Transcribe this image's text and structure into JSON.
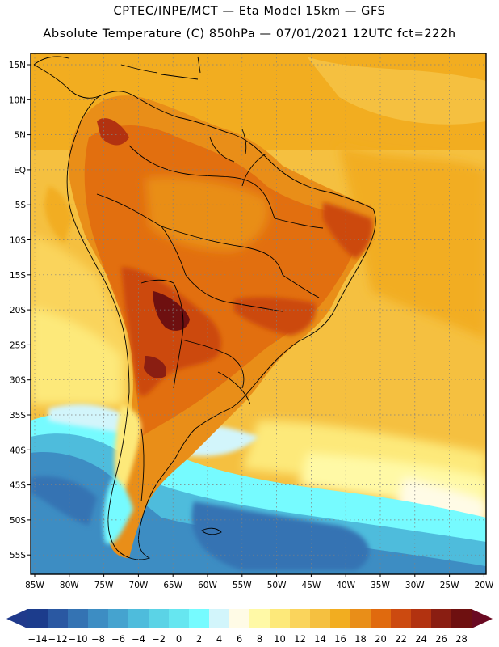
{
  "header": {
    "line1": "CPTEC/INPE/MCT —  Eta Model 15km — GFS",
    "line2": "Absolute Temperature (C) 850hPa — 07/01/2021 12UTC fct=222h"
  },
  "axes": {
    "lat_labels": [
      "15N",
      "10N",
      "5N",
      "EQ",
      "5S",
      "10S",
      "15S",
      "20S",
      "25S",
      "30S",
      "35S",
      "40S",
      "45S",
      "50S",
      "55S"
    ],
    "lon_labels": [
      "85W",
      "80W",
      "75W",
      "70W",
      "65W",
      "60W",
      "55W",
      "50W",
      "45W",
      "40W",
      "35W",
      "30W",
      "25W",
      "20W"
    ],
    "lat_range": [
      -58,
      16
    ],
    "lon_range": [
      -87,
      -20
    ]
  },
  "colorbar": {
    "labels": [
      "-14",
      "-12",
      "-10",
      "-8",
      "-6",
      "-4",
      "-2",
      "0",
      "2",
      "4",
      "6",
      "8",
      "10",
      "12",
      "14",
      "16",
      "18",
      "20",
      "22",
      "24",
      "26",
      "28"
    ],
    "colors": [
      "#1c3c8c",
      "#2a58a2",
      "#3473b3",
      "#3d8dc3",
      "#45a3cf",
      "#4ebcdc",
      "#5bd3e6",
      "#66e6f0",
      "#76fbff",
      "#d2f5fb",
      "#fffbe6",
      "#fff9a6",
      "#fde97a",
      "#fad45c",
      "#f5c040",
      "#f2ad20",
      "#e98e18",
      "#e06a0e",
      "#cc4a10",
      "#b23210",
      "#8a1e12",
      "#6e1010"
    ],
    "low_arrow_color": "#203a8c",
    "high_arrow_color": "#6a0a22"
  }
}
